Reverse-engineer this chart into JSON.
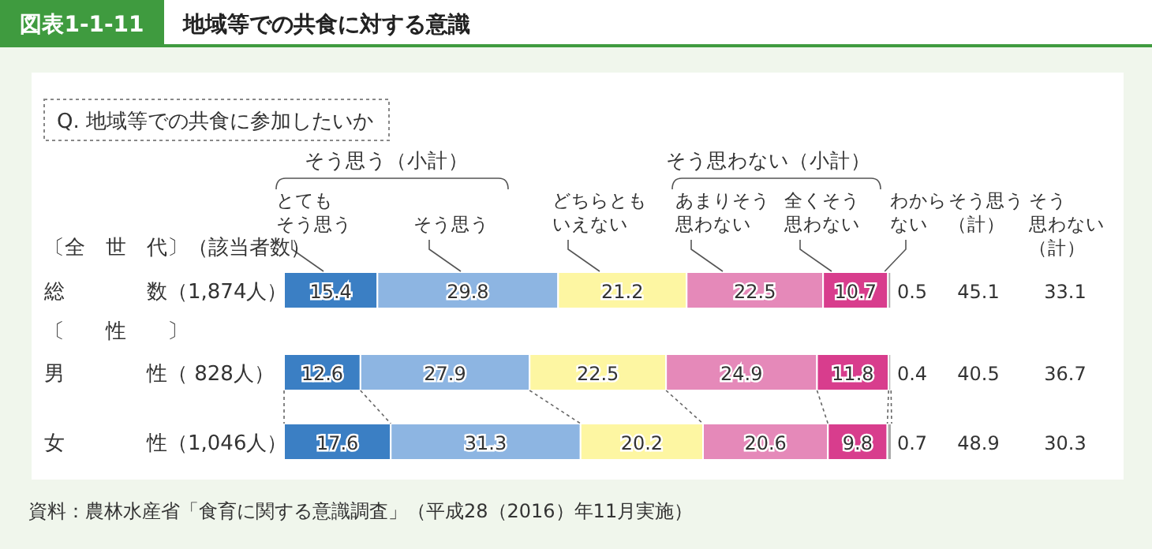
{
  "chart_data": {
    "type": "bar",
    "orientation": "horizontal",
    "stacked": true,
    "data_labels": true,
    "title": "地域等での共食に対する意識",
    "subtitle": "Q. 地域等での共食に参加したいか",
    "categories": [
      "総　　　　数（1,874人）",
      "男　　　　性（ 828人）",
      "女　　　　性（1,046人）"
    ],
    "series": [
      {
        "name": "とてもそう思う",
        "color": "#3b7fc4",
        "values": [
          15.4,
          12.6,
          17.6
        ]
      },
      {
        "name": "そう思う",
        "color": "#8db5e2",
        "values": [
          29.8,
          27.9,
          31.3
        ]
      },
      {
        "name": "どちらともいえない",
        "color": "#fdf6a2",
        "values": [
          21.2,
          22.5,
          20.2
        ]
      },
      {
        "name": "あまりそう思わない",
        "color": "#e589b9",
        "values": [
          22.5,
          24.9,
          20.6
        ]
      },
      {
        "name": "全くそう思わない",
        "color": "#d83d8d",
        "values": [
          10.7,
          11.8,
          9.8
        ]
      },
      {
        "name": "わからない",
        "color": "#aaaaaa",
        "values": [
          0.5,
          0.4,
          0.7
        ]
      }
    ],
    "annotations": [
      "図表1-1-11",
      "〔全　世　代〕（該当者数）",
      "〔　　性　　〕",
      "そう思う（小計）",
      "そう思わない（小計）",
      "そう思う（計）",
      "そう思わない（計）",
      "45.1",
      "33.1",
      "40.5",
      "36.7",
      "48.9",
      "30.3",
      "資料：農林水産省「食育に関する意識調査」（平成28（2016）年11月実施）"
    ]
  }
}
